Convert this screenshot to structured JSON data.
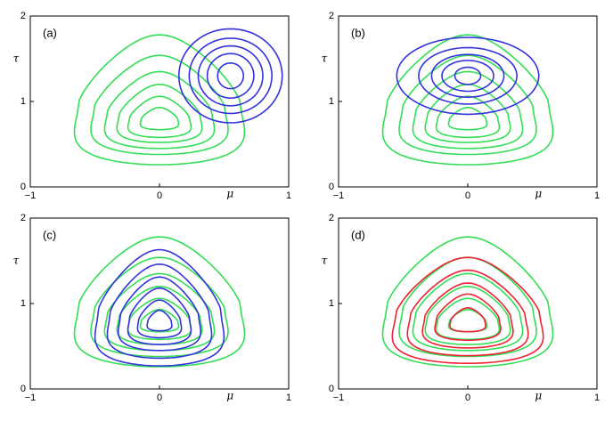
{
  "chart_data": [
    {
      "type": "contour",
      "panel_label": "(a)",
      "xlabel": "μ",
      "ylabel": "τ",
      "xlim": [
        -1,
        1
      ],
      "ylim": [
        0,
        2
      ],
      "xticks": [
        {
          "value": -1,
          "label": "−1"
        },
        0,
        1
      ],
      "yticks": [
        0,
        1,
        2
      ],
      "series": [
        {
          "color": "#33dd55",
          "shape": "triangle",
          "levels": [
            {
              "cx": 0,
              "cy": 1.02,
              "rx": 0.62,
              "ry": 0.76
            },
            {
              "cx": 0,
              "cy": 0.96,
              "rx": 0.5,
              "ry": 0.58
            },
            {
              "cx": 0,
              "cy": 0.9,
              "rx": 0.4,
              "ry": 0.45
            },
            {
              "cx": 0,
              "cy": 0.86,
              "rx": 0.31,
              "ry": 0.34
            },
            {
              "cx": 0,
              "cy": 0.82,
              "rx": 0.23,
              "ry": 0.24
            },
            {
              "cx": 0,
              "cy": 0.8,
              "rx": 0.14,
              "ry": 0.13
            }
          ]
        },
        {
          "color": "#3333dd",
          "shape": "ellipse",
          "levels": [
            {
              "cx": 0.55,
              "cy": 1.3,
              "rx": 0.4,
              "ry": 0.55
            },
            {
              "cx": 0.55,
              "cy": 1.3,
              "rx": 0.32,
              "ry": 0.44
            },
            {
              "cx": 0.55,
              "cy": 1.3,
              "rx": 0.25,
              "ry": 0.35
            },
            {
              "cx": 0.55,
              "cy": 1.3,
              "rx": 0.18,
              "ry": 0.26
            },
            {
              "cx": 0.55,
              "cy": 1.3,
              "rx": 0.1,
              "ry": 0.15
            }
          ]
        }
      ]
    },
    {
      "type": "contour",
      "panel_label": "(b)",
      "xlabel": "μ",
      "ylabel": "τ",
      "xlim": [
        -1,
        1
      ],
      "ylim": [
        0,
        2
      ],
      "xticks": [
        {
          "value": -1,
          "label": "−1"
        },
        0,
        1
      ],
      "yticks": [
        0,
        1,
        2
      ],
      "series": [
        {
          "color": "#33dd55",
          "shape": "triangle",
          "levels": [
            {
              "cx": 0,
              "cy": 1.02,
              "rx": 0.62,
              "ry": 0.76
            },
            {
              "cx": 0,
              "cy": 0.96,
              "rx": 0.5,
              "ry": 0.58
            },
            {
              "cx": 0,
              "cy": 0.9,
              "rx": 0.4,
              "ry": 0.45
            },
            {
              "cx": 0,
              "cy": 0.86,
              "rx": 0.31,
              "ry": 0.34
            },
            {
              "cx": 0,
              "cy": 0.82,
              "rx": 0.23,
              "ry": 0.24
            },
            {
              "cx": 0,
              "cy": 0.8,
              "rx": 0.14,
              "ry": 0.13
            }
          ]
        },
        {
          "color": "#3333dd",
          "shape": "ellipse",
          "levels": [
            {
              "cx": 0,
              "cy": 1.3,
              "rx": 0.55,
              "ry": 0.45
            },
            {
              "cx": 0,
              "cy": 1.3,
              "rx": 0.38,
              "ry": 0.33
            },
            {
              "cx": 0,
              "cy": 1.3,
              "rx": 0.28,
              "ry": 0.25
            },
            {
              "cx": 0,
              "cy": 1.3,
              "rx": 0.2,
              "ry": 0.18
            },
            {
              "cx": 0,
              "cy": 1.3,
              "rx": 0.1,
              "ry": 0.1
            }
          ]
        }
      ]
    },
    {
      "type": "contour",
      "panel_label": "(c)",
      "xlabel": "μ",
      "ylabel": "τ",
      "xlim": [
        -1,
        1
      ],
      "ylim": [
        0,
        2
      ],
      "xticks": [
        {
          "value": -1,
          "label": "−1"
        },
        0,
        1
      ],
      "yticks": [
        0,
        1,
        2
      ],
      "series": [
        {
          "color": "#33dd55",
          "shape": "triangle",
          "levels": [
            {
              "cx": 0,
              "cy": 1.02,
              "rx": 0.62,
              "ry": 0.76
            },
            {
              "cx": 0,
              "cy": 0.96,
              "rx": 0.5,
              "ry": 0.58
            },
            {
              "cx": 0,
              "cy": 0.9,
              "rx": 0.4,
              "ry": 0.45
            },
            {
              "cx": 0,
              "cy": 0.86,
              "rx": 0.31,
              "ry": 0.34
            },
            {
              "cx": 0,
              "cy": 0.82,
              "rx": 0.23,
              "ry": 0.24
            },
            {
              "cx": 0,
              "cy": 0.8,
              "rx": 0.14,
              "ry": 0.13
            }
          ]
        },
        {
          "color": "#3333dd",
          "shape": "triangle",
          "levels": [
            {
              "cx": 0,
              "cy": 0.95,
              "rx": 0.47,
              "ry": 0.68
            },
            {
              "cx": 0,
              "cy": 0.91,
              "rx": 0.38,
              "ry": 0.55
            },
            {
              "cx": 0,
              "cy": 0.88,
              "rx": 0.3,
              "ry": 0.43
            },
            {
              "cx": 0,
              "cy": 0.85,
              "rx": 0.23,
              "ry": 0.33
            },
            {
              "cx": 0,
              "cy": 0.82,
              "rx": 0.16,
              "ry": 0.22
            },
            {
              "cx": 0,
              "cy": 0.8,
              "rx": 0.09,
              "ry": 0.12
            }
          ]
        }
      ]
    },
    {
      "type": "contour",
      "panel_label": "(d)",
      "xlabel": "μ",
      "ylabel": "τ",
      "xlim": [
        -1,
        1
      ],
      "ylim": [
        0,
        2
      ],
      "xticks": [
        {
          "value": -1,
          "label": "−1"
        },
        0,
        1
      ],
      "yticks": [
        0,
        1,
        2
      ],
      "series": [
        {
          "color": "#33dd55",
          "shape": "triangle",
          "levels": [
            {
              "cx": 0,
              "cy": 1.02,
              "rx": 0.62,
              "ry": 0.76
            },
            {
              "cx": 0,
              "cy": 0.96,
              "rx": 0.5,
              "ry": 0.58
            },
            {
              "cx": 0,
              "cy": 0.9,
              "rx": 0.4,
              "ry": 0.45
            },
            {
              "cx": 0,
              "cy": 0.86,
              "rx": 0.31,
              "ry": 0.34
            },
            {
              "cx": 0,
              "cy": 0.82,
              "rx": 0.23,
              "ry": 0.24
            },
            {
              "cx": 0,
              "cy": 0.8,
              "rx": 0.14,
              "ry": 0.13
            }
          ]
        },
        {
          "color": "#ee2233",
          "shape": "triangle",
          "levels": [
            {
              "cx": 0,
              "cy": 0.92,
              "rx": 0.55,
              "ry": 0.62
            },
            {
              "cx": 0,
              "cy": 0.89,
              "rx": 0.44,
              "ry": 0.5
            },
            {
              "cx": 0,
              "cy": 0.86,
              "rx": 0.33,
              "ry": 0.38
            },
            {
              "cx": 0,
              "cy": 0.84,
              "rx": 0.24,
              "ry": 0.27
            },
            {
              "cx": 0,
              "cy": 0.81,
              "rx": 0.13,
              "ry": 0.14
            }
          ]
        }
      ]
    }
  ]
}
